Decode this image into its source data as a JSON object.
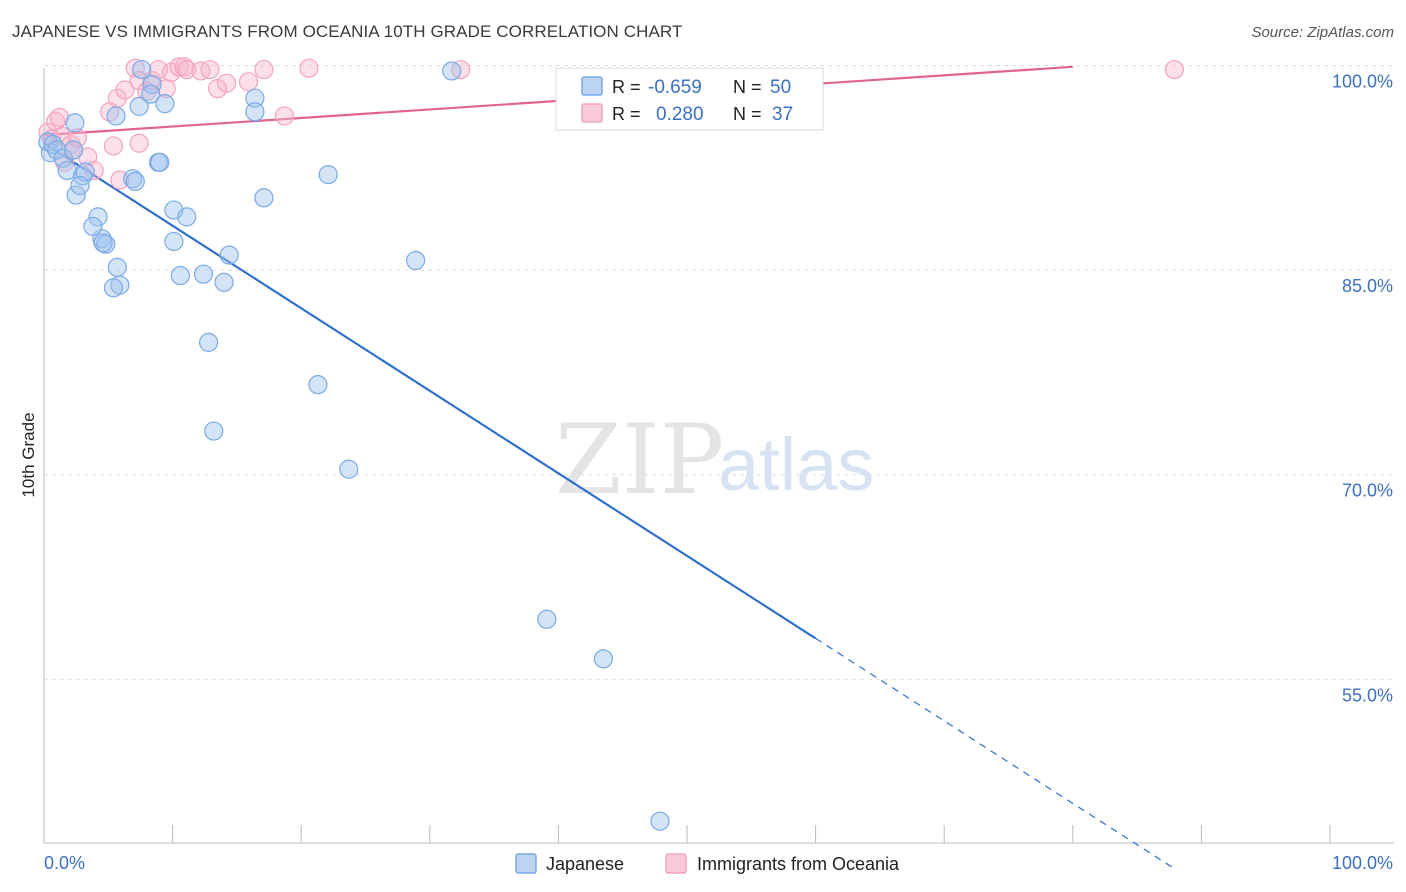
{
  "title": "JAPANESE VS IMMIGRANTS FROM OCEANIA 10TH GRADE CORRELATION CHART",
  "source": "Source: ZipAtlas.com",
  "watermark": {
    "zip": "ZIP",
    "atlas": "atlas"
  },
  "legend_box": {
    "rows": [
      {
        "r_label": "R =",
        "r_value": "-0.659",
        "n_label": "N =",
        "n_value": "50",
        "color": "#7aaae6"
      },
      {
        "r_label": "R =",
        "r_value": "0.280",
        "n_label": "N =",
        "n_value": "37",
        "color": "#f4a3bd"
      }
    ]
  },
  "bottom_legend": [
    {
      "label": "Japanese",
      "color": "#7aaae6"
    },
    {
      "label": "Immigrants from Oceania",
      "color": "#f4a3bd"
    }
  ],
  "chart_data": {
    "type": "scatter",
    "xlabel": "",
    "ylabel": "10th Grade",
    "xlim": [
      0,
      100
    ],
    "ylim": [
      43,
      101.5
    ],
    "x_tick_labels": [
      "0.0%",
      "100.0%"
    ],
    "y_ticks": [
      {
        "value": 100,
        "label": "100.0%"
      },
      {
        "value": 85,
        "label": "85.0%"
      },
      {
        "value": 70,
        "label": "70.0%"
      },
      {
        "value": 55,
        "label": "55.0%"
      }
    ],
    "grid": true,
    "series": [
      {
        "name": "Japanese",
        "color": "#7aaae6",
        "line_color": "#2f6fcc",
        "points": [
          [
            0.3,
            94.4
          ],
          [
            0.5,
            93.6
          ],
          [
            0.7,
            94.2
          ],
          [
            1.0,
            93.8
          ],
          [
            1.5,
            93.2
          ],
          [
            1.8,
            92.3
          ],
          [
            2.3,
            93.8
          ],
          [
            2.4,
            95.8
          ],
          [
            3.0,
            91.9
          ],
          [
            3.2,
            92.2
          ],
          [
            2.5,
            90.5
          ],
          [
            2.8,
            91.2
          ],
          [
            4.2,
            88.9
          ],
          [
            4.5,
            87.3
          ],
          [
            3.8,
            88.2
          ],
          [
            4.8,
            86.9
          ],
          [
            4.6,
            87.0
          ],
          [
            5.7,
            85.2
          ],
          [
            5.9,
            83.9
          ],
          [
            5.4,
            83.7
          ],
          [
            6.9,
            91.7
          ],
          [
            7.1,
            91.5
          ],
          [
            7.4,
            97.0
          ],
          [
            5.6,
            96.3
          ],
          [
            7.6,
            99.7
          ],
          [
            8.4,
            98.6
          ],
          [
            8.3,
            97.9
          ],
          [
            8.9,
            92.9
          ],
          [
            9.0,
            92.9
          ],
          [
            9.4,
            97.2
          ],
          [
            10.1,
            89.4
          ],
          [
            10.1,
            87.1
          ],
          [
            10.6,
            84.6
          ],
          [
            11.1,
            88.9
          ],
          [
            12.4,
            84.7
          ],
          [
            12.8,
            79.7
          ],
          [
            13.2,
            73.2
          ],
          [
            14.0,
            84.1
          ],
          [
            14.4,
            86.1
          ],
          [
            16.4,
            97.6
          ],
          [
            16.4,
            96.6
          ],
          [
            17.1,
            90.3
          ],
          [
            21.3,
            76.6
          ],
          [
            22.1,
            92.0
          ],
          [
            23.7,
            70.4
          ],
          [
            28.9,
            85.7
          ],
          [
            31.7,
            99.6
          ],
          [
            39.1,
            59.4
          ],
          [
            43.5,
            56.5
          ],
          [
            47.9,
            44.6
          ]
        ],
        "trend": {
          "x0": 0,
          "y0": 94.3,
          "x1": 60,
          "y1": 58.0,
          "dashed_to_x": 88
        }
      },
      {
        "name": "Immigrants from Oceania",
        "color": "#f4a3bd",
        "line_color": "#e0648f",
        "points": [
          [
            0.3,
            95.1
          ],
          [
            0.6,
            94.6
          ],
          [
            0.9,
            95.9
          ],
          [
            1.2,
            96.2
          ],
          [
            1.4,
            94.8
          ],
          [
            1.6,
            92.9
          ],
          [
            2.1,
            94.2
          ],
          [
            2.3,
            93.8
          ],
          [
            2.6,
            94.7
          ],
          [
            3.4,
            93.3
          ],
          [
            3.9,
            92.3
          ],
          [
            5.1,
            96.6
          ],
          [
            5.4,
            94.1
          ],
          [
            5.7,
            97.6
          ],
          [
            5.9,
            91.6
          ],
          [
            6.3,
            98.2
          ],
          [
            7.1,
            99.8
          ],
          [
            7.4,
            98.9
          ],
          [
            7.4,
            94.3
          ],
          [
            8.0,
            98.1
          ],
          [
            8.4,
            98.9
          ],
          [
            8.9,
            99.7
          ],
          [
            9.5,
            98.3
          ],
          [
            9.9,
            99.5
          ],
          [
            10.5,
            99.9
          ],
          [
            10.9,
            99.9
          ],
          [
            11.1,
            99.7
          ],
          [
            12.2,
            99.6
          ],
          [
            12.9,
            99.7
          ],
          [
            13.5,
            98.3
          ],
          [
            14.2,
            98.7
          ],
          [
            15.9,
            98.8
          ],
          [
            17.1,
            99.7
          ],
          [
            18.7,
            96.3
          ],
          [
            20.6,
            99.8
          ],
          [
            32.4,
            99.7
          ],
          [
            87.9,
            99.7
          ]
        ],
        "trend": {
          "x0": 0,
          "y0": 94.9,
          "x1": 80,
          "y1": 99.9
        }
      }
    ]
  }
}
